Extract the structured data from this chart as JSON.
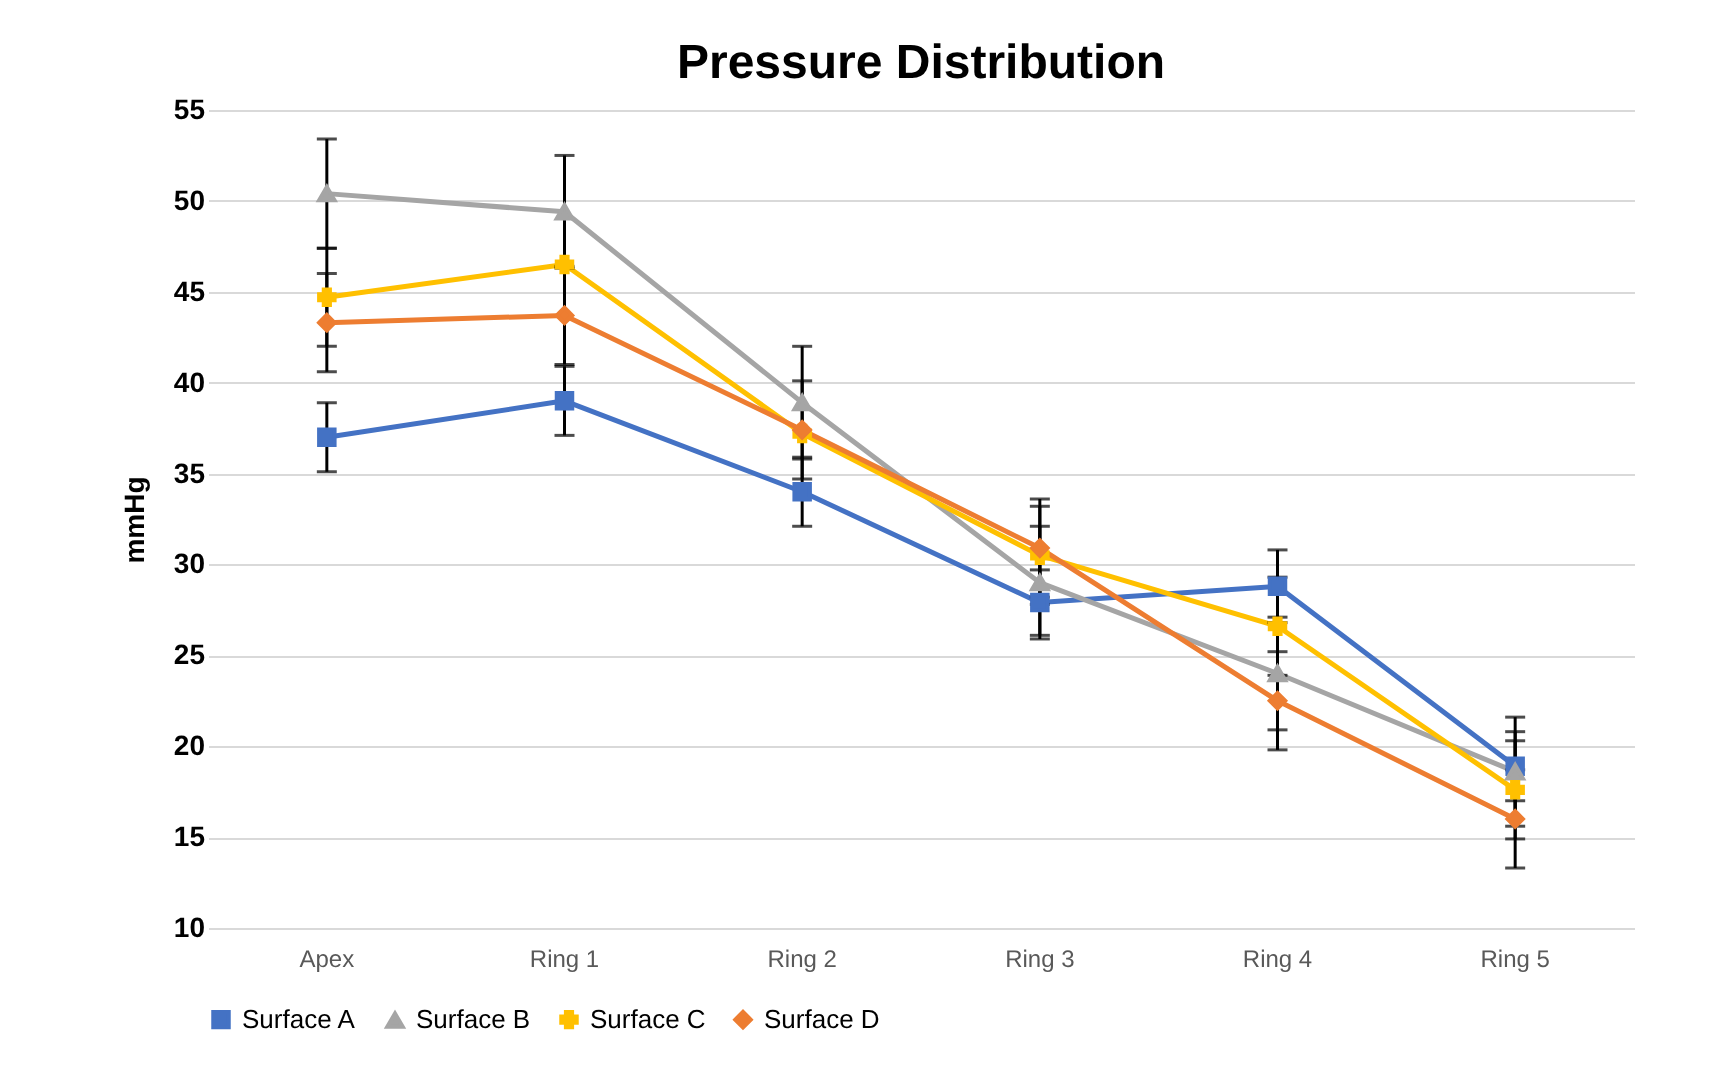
{
  "chart_data": {
    "type": "line",
    "title": "Pressure Distribution",
    "ylabel": "mmHg",
    "categories": [
      "Apex",
      "Ring 1",
      "Ring 2",
      "Ring 3",
      "Ring 4",
      "Ring 5"
    ],
    "series": [
      {
        "name": "Surface A",
        "color": "#4472c4",
        "marker": "square",
        "values": [
          37.0,
          39.0,
          34.0,
          27.9,
          28.8,
          18.9
        ],
        "errors": [
          1.9,
          1.9,
          1.9,
          1.8,
          2.0,
          1.9
        ]
      },
      {
        "name": "Surface B",
        "color": "#a5a5a5",
        "marker": "triangle",
        "values": [
          50.4,
          49.4,
          38.9,
          29.0,
          24.0,
          18.6
        ],
        "errors": [
          3.0,
          3.1,
          3.1,
          3.1,
          3.1,
          3.0
        ]
      },
      {
        "name": "Surface C",
        "color": "#ffc000",
        "marker": "cross",
        "values": [
          44.7,
          46.5,
          37.2,
          30.5,
          26.6,
          17.6
        ],
        "errors": [
          2.7,
          null,
          null,
          2.7,
          2.7,
          2.7
        ]
      },
      {
        "name": "Surface D",
        "color": "#ed7d31",
        "marker": "diamond",
        "values": [
          43.3,
          43.7,
          37.4,
          30.9,
          22.5,
          16.0
        ],
        "errors": [
          2.7,
          2.7,
          2.7,
          2.7,
          2.7,
          2.7
        ]
      }
    ],
    "ylim": [
      10,
      55
    ],
    "yticks": [
      10,
      15,
      20,
      25,
      30,
      35,
      40,
      45,
      50,
      55
    ],
    "grid": "y",
    "legend": "bottom"
  }
}
